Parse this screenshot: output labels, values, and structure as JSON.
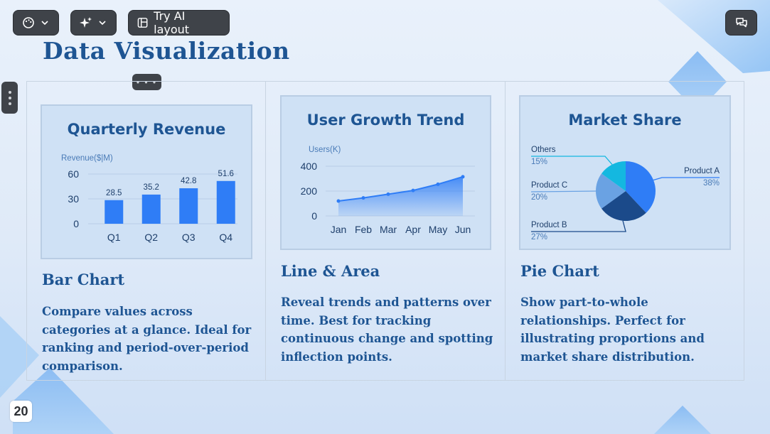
{
  "toolbar": {
    "theme_icon": "palette-icon",
    "ai_icon": "sparkles-icon",
    "try_ai_label": "Try AI layout",
    "comment_icon": "chat-icon"
  },
  "slide": {
    "title": "Data Visualization",
    "page_number": "20"
  },
  "cards": [
    {
      "title": "Bar Chart",
      "description": "Compare values across categories at a glance. Ideal for ranking and period-over-period comparison."
    },
    {
      "title": "Line & Area",
      "description": "Reveal trends and patterns over time. Best for tracking continuous change and spotting inflection points."
    },
    {
      "title": "Pie Chart",
      "description": "Show part-to-whole relationships. Perfect for illustrating proportions and market share distribution."
    }
  ],
  "colors": {
    "title": "#1e5593",
    "bar": "#2f7df6",
    "line": "#2f7df6",
    "pie_a": "#2f7df6",
    "pie_b": "#1b4a8a",
    "pie_c": "#6aa2e3",
    "pie_others": "#14b8e0"
  },
  "chart_data": [
    {
      "type": "bar",
      "title": "Quarterly Revenue",
      "ylabel": "Revenue($|M)",
      "categories": [
        "Q1",
        "Q2",
        "Q3",
        "Q4"
      ],
      "values": [
        28.5,
        35.2,
        42.8,
        51.6
      ],
      "yticks": [
        0,
        30,
        60
      ],
      "ylim": [
        0,
        60
      ],
      "grid": true
    },
    {
      "type": "area",
      "title": "User Growth Trend",
      "ylabel": "Users(K)",
      "categories": [
        "Jan",
        "Feb",
        "Mar",
        "Apr",
        "May",
        "Jun"
      ],
      "values": [
        120,
        145,
        175,
        205,
        255,
        315
      ],
      "yticks": [
        0,
        200,
        400
      ],
      "ylim": [
        0,
        400
      ],
      "grid": true
    },
    {
      "type": "pie",
      "title": "Market Share",
      "slices": [
        {
          "label": "Product A",
          "value": 38
        },
        {
          "label": "Product B",
          "value": 27
        },
        {
          "label": "Product C",
          "value": 20
        },
        {
          "label": "Others",
          "value": 15
        }
      ]
    }
  ]
}
